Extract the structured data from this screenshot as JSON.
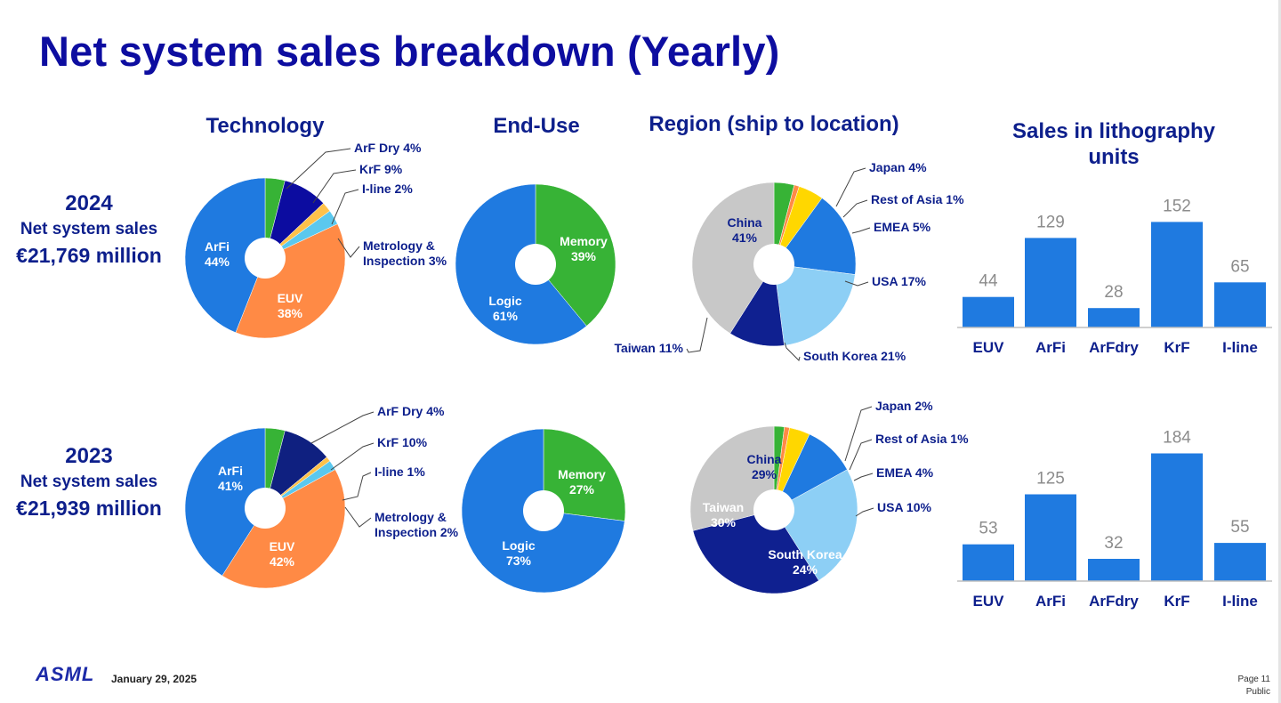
{
  "title": "Net system sales breakdown (Yearly)",
  "headers": {
    "technology": "Technology",
    "end_use": "End-Use",
    "region": "Region (ship to location)",
    "units_line1": "Sales in lithography",
    "units_line2": "units"
  },
  "years": [
    {
      "year": "2024",
      "label": "Net system sales",
      "amount": "€21,769 million"
    },
    {
      "year": "2023",
      "label": "Net system sales",
      "amount": "€21,939 million"
    }
  ],
  "footer": {
    "logo": "ASML",
    "date": "January 29, 2025",
    "page": "Page 11",
    "classification": "Public"
  },
  "colors": {
    "EUV": "#ff8a45",
    "ArFi": "#1f7ae0",
    "ArF Dry": "#37b336",
    "KrF 2024": "#0c0ca0",
    "KrF 2023": "#0f2080",
    "I-line": "#ffc14a",
    "Metrology": "#5bc8ee",
    "Memory": "#37b336",
    "Logic": "#1f7ae0",
    "China": "#c8c8c8",
    "Japan": "#37b336",
    "Rest of Asia": "#ff8a45",
    "EMEA": "#ffd700",
    "USA": "#1f7ae0",
    "South Korea": "#8dcff5",
    "Taiwan": "#0f2090",
    "bar": "#1f7ae0"
  },
  "chart_data": [
    {
      "id": "tech2024",
      "type": "pie",
      "year": "2024",
      "slices": [
        {
          "name": "ArF Dry",
          "value": 4,
          "label": "ArF Dry 4%",
          "callout": true
        },
        {
          "name": "KrF",
          "value": 9,
          "label": "KrF 9%",
          "callout": true
        },
        {
          "name": "I-line",
          "value": 2,
          "label": "I-line 2%",
          "callout": true
        },
        {
          "name": "Metrology",
          "value": 3,
          "label": [
            "Metrology &",
            "Inspection 3%"
          ],
          "callout": true
        },
        {
          "name": "EUV",
          "value": 38,
          "label": [
            "EUV",
            "38%"
          ],
          "callout": false
        },
        {
          "name": "ArFi",
          "value": 44,
          "label": [
            "ArFi",
            "44%"
          ],
          "callout": false
        }
      ]
    },
    {
      "id": "end2024",
      "type": "pie",
      "year": "2024",
      "slices": [
        {
          "name": "Memory",
          "value": 39,
          "label": [
            "Memory",
            "39%"
          ],
          "callout": false
        },
        {
          "name": "Logic",
          "value": 61,
          "label": [
            "Logic",
            "61%"
          ],
          "callout": false
        }
      ]
    },
    {
      "id": "reg2024",
      "type": "pie",
      "year": "2024",
      "slices": [
        {
          "name": "Japan",
          "value": 4,
          "label": "Japan 4%",
          "callout": true
        },
        {
          "name": "Rest of Asia",
          "value": 1,
          "label": "Rest of Asia 1%",
          "callout": true
        },
        {
          "name": "EMEA",
          "value": 5,
          "label": "EMEA 5%",
          "callout": true
        },
        {
          "name": "USA",
          "value": 17,
          "label": "USA 17%",
          "callout": true
        },
        {
          "name": "South Korea",
          "value": 21,
          "label": "South Korea 21%",
          "callout": true
        },
        {
          "name": "Taiwan",
          "value": 11,
          "label": "Taiwan 11%",
          "callout": true
        },
        {
          "name": "China",
          "value": 41,
          "label": [
            "China",
            "41%"
          ],
          "callout": false
        }
      ]
    },
    {
      "id": "tech2023",
      "type": "pie",
      "year": "2023",
      "slices": [
        {
          "name": "ArF Dry",
          "value": 4,
          "label": "ArF Dry 4%",
          "callout": true
        },
        {
          "name": "KrF",
          "value": 10,
          "label": "KrF 10%",
          "callout": true
        },
        {
          "name": "I-line",
          "value": 1,
          "label": "I-line 1%",
          "callout": true
        },
        {
          "name": "Metrology",
          "value": 2,
          "label": [
            "Metrology &",
            "Inspection 2%"
          ],
          "callout": true
        },
        {
          "name": "EUV",
          "value": 42,
          "label": [
            "EUV",
            "42%"
          ],
          "callout": false
        },
        {
          "name": "ArFi",
          "value": 41,
          "label": [
            "ArFi",
            "41%"
          ],
          "callout": false
        }
      ]
    },
    {
      "id": "end2023",
      "type": "pie",
      "year": "2023",
      "slices": [
        {
          "name": "Memory",
          "value": 27,
          "label": [
            "Memory",
            "27%"
          ],
          "callout": false
        },
        {
          "name": "Logic",
          "value": 73,
          "label": [
            "Logic",
            "73%"
          ],
          "callout": false
        }
      ]
    },
    {
      "id": "reg2023",
      "type": "pie",
      "year": "2023",
      "slices": [
        {
          "name": "Japan",
          "value": 2,
          "label": "Japan 2%",
          "callout": true
        },
        {
          "name": "Rest of Asia",
          "value": 1,
          "label": "Rest of Asia 1%",
          "callout": true
        },
        {
          "name": "EMEA",
          "value": 4,
          "label": "EMEA 4%",
          "callout": true
        },
        {
          "name": "USA",
          "value": 10,
          "label": "USA 10%",
          "callout": true
        },
        {
          "name": "South Korea",
          "value": 24,
          "label": [
            "South Korea",
            "24%"
          ],
          "callout": false
        },
        {
          "name": "Taiwan",
          "value": 30,
          "label": [
            "Taiwan",
            "30%"
          ],
          "callout": false
        },
        {
          "name": "China",
          "value": 29,
          "label": [
            "China",
            "29%"
          ],
          "callout": false
        }
      ]
    },
    {
      "id": "units2024",
      "type": "bar",
      "year": "2024",
      "categories": [
        "EUV",
        "ArFi",
        "ArFdry",
        "KrF",
        "I-line"
      ],
      "values": [
        44,
        129,
        28,
        152,
        65
      ]
    },
    {
      "id": "units2023",
      "type": "bar",
      "year": "2023",
      "categories": [
        "EUV",
        "ArFi",
        "ArFdry",
        "KrF",
        "I-line"
      ],
      "values": [
        53,
        125,
        32,
        184,
        55
      ]
    }
  ]
}
